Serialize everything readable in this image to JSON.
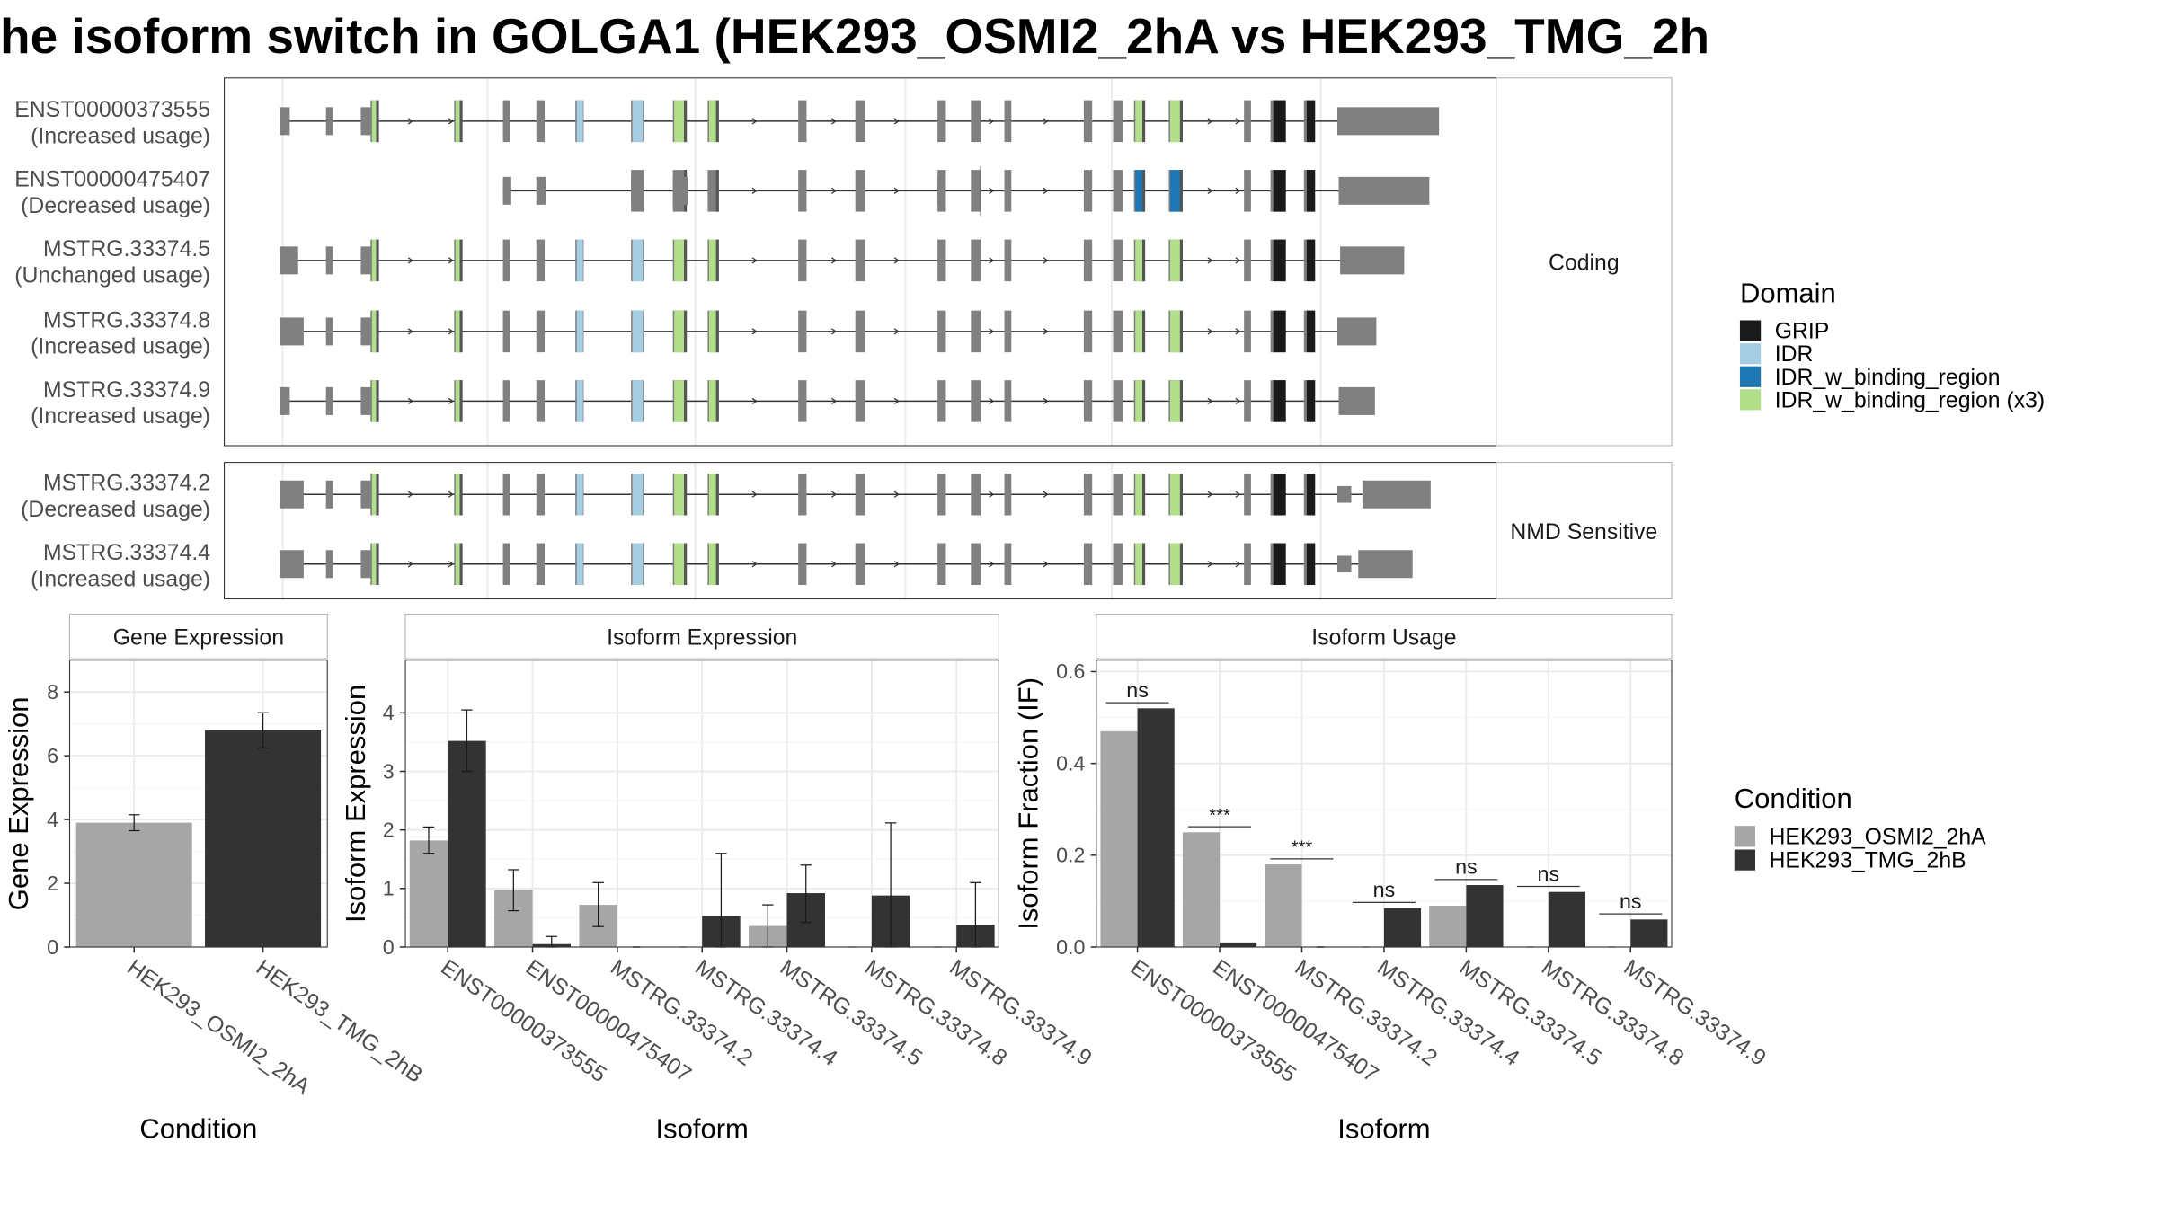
{
  "title": "he isoform switch in GOLGA1 (HEK293_OSMI2_2hA vs HEK293_TMG_2h",
  "colors": {
    "exon": "#808080",
    "GRIP": "#1a1a1a",
    "IDR": "#a6cee3",
    "IDR_w_binding_region": "#1f78b4",
    "IDR_w_binding_region_x3": "#b2df8a",
    "cond_a": "#a6a6a6",
    "cond_b": "#333333"
  },
  "structure": {
    "strips": {
      "coding": "Coding",
      "nmd": "NMD Sensitive"
    },
    "isoforms": [
      {
        "id": "ENST00000373555",
        "usage": "(Increased usage)",
        "group": "coding",
        "variant": "full_long",
        "cds_start": 201
      },
      {
        "id": "ENST00000475407",
        "usage": "(Decreased usage)",
        "group": "coding",
        "variant": "short",
        "cds_start": 704
      },
      {
        "id": "MSTRG.33374.5",
        "usage": "(Unchanged usage)",
        "group": "coding",
        "variant": "full_mid",
        "cds_start": 201
      },
      {
        "id": "MSTRG.33374.8",
        "usage": "(Increased usage)",
        "group": "coding",
        "variant": "full_short",
        "cds_start": 201
      },
      {
        "id": "MSTRG.33374.9",
        "usage": "(Increased usage)",
        "group": "coding",
        "variant": "full_short2",
        "cds_start": 201
      },
      {
        "id": "MSTRG.33374.2",
        "usage": "(Decreased usage)",
        "group": "nmd",
        "variant": "nmd1",
        "cds_start": 201
      },
      {
        "id": "MSTRG.33374.4",
        "usage": "(Increased usage)",
        "group": "nmd",
        "variant": "nmd2",
        "cds_start": 201
      }
    ],
    "legend_title": "Domain",
    "legend": [
      {
        "label": "GRIP",
        "color_key": "GRIP"
      },
      {
        "label": "IDR",
        "color_key": "IDR"
      },
      {
        "label": "IDR_w_binding_region",
        "color_key": "IDR_w_binding_region"
      },
      {
        "label": "IDR_w_binding_region (x3)",
        "color_key": "IDR_w_binding_region_x3"
      }
    ]
  },
  "condition_legend": {
    "title": "Condition",
    "items": [
      {
        "label": "HEK293_OSMI2_2hA",
        "color_key": "cond_a"
      },
      {
        "label": "HEK293_TMG_2hB",
        "color_key": "cond_b"
      }
    ]
  },
  "chart_data": [
    {
      "type": "bar",
      "title": "Gene Expression",
      "xlabel": "Condition",
      "ylabel": "Gene Expression",
      "ylim": [
        0,
        9
      ],
      "yticks": [
        0,
        2,
        4,
        6,
        8
      ],
      "categories": [
        "HEK293_OSMI2_2hA",
        "HEK293_TMG_2hB"
      ],
      "values": [
        3.9,
        6.8
      ],
      "errors": [
        [
          3.65,
          4.15
        ],
        [
          6.25,
          7.35
        ]
      ]
    },
    {
      "type": "bar",
      "title": "Isoform Expression",
      "xlabel": "Isoform",
      "ylabel": "Isoform Expression",
      "ylim": [
        0,
        4.9
      ],
      "yticks": [
        0,
        1,
        2,
        3,
        4
      ],
      "categories": [
        "ENST00000373555",
        "ENST00000475407",
        "MSTRG.33374.2",
        "MSTRG.33374.4",
        "MSTRG.33374.5",
        "MSTRG.33374.8",
        "MSTRG.33374.9"
      ],
      "series": [
        {
          "name": "HEK293_OSMI2_2hA",
          "values": [
            1.82,
            0.97,
            0.72,
            0.0,
            0.36,
            0.0,
            0.0
          ],
          "errors": [
            [
              1.6,
              2.05
            ],
            [
              0.62,
              1.32
            ],
            [
              0.35,
              1.1
            ],
            [
              0,
              0
            ],
            [
              0.0,
              0.72
            ],
            [
              0,
              0
            ],
            [
              0,
              0
            ]
          ]
        },
        {
          "name": "HEK293_TMG_2hB",
          "values": [
            3.52,
            0.05,
            0.0,
            0.53,
            0.92,
            0.88,
            0.38
          ],
          "errors": [
            [
              3.0,
              4.05
            ],
            [
              0.0,
              0.18
            ],
            [
              0,
              0
            ],
            [
              0.0,
              1.6
            ],
            [
              0.42,
              1.4
            ],
            [
              0.0,
              2.12
            ],
            [
              0.0,
              1.1
            ]
          ]
        }
      ]
    },
    {
      "type": "bar",
      "title": "Isoform Usage",
      "xlabel": "Isoform",
      "ylabel": "Isoform Fraction (IF)",
      "ylim": [
        0,
        0.625
      ],
      "yticks": [
        0.0,
        0.2,
        0.4,
        0.6
      ],
      "ytick_labels": [
        "0.0",
        "0.2",
        "0.4",
        "0.6"
      ],
      "categories": [
        "ENST00000373555",
        "ENST00000475407",
        "MSTRG.33374.2",
        "MSTRG.33374.4",
        "MSTRG.33374.5",
        "MSTRG.33374.8",
        "MSTRG.33374.9"
      ],
      "series": [
        {
          "name": "HEK293_OSMI2_2hA",
          "values": [
            0.47,
            0.25,
            0.18,
            0.0,
            0.09,
            0.0,
            0.0
          ]
        },
        {
          "name": "HEK293_TMG_2hB",
          "values": [
            0.52,
            0.01,
            0.0,
            0.085,
            0.135,
            0.12,
            0.06
          ]
        }
      ],
      "significance": [
        "ns",
        "***",
        "***",
        "ns",
        "ns",
        "ns",
        "ns"
      ]
    }
  ]
}
